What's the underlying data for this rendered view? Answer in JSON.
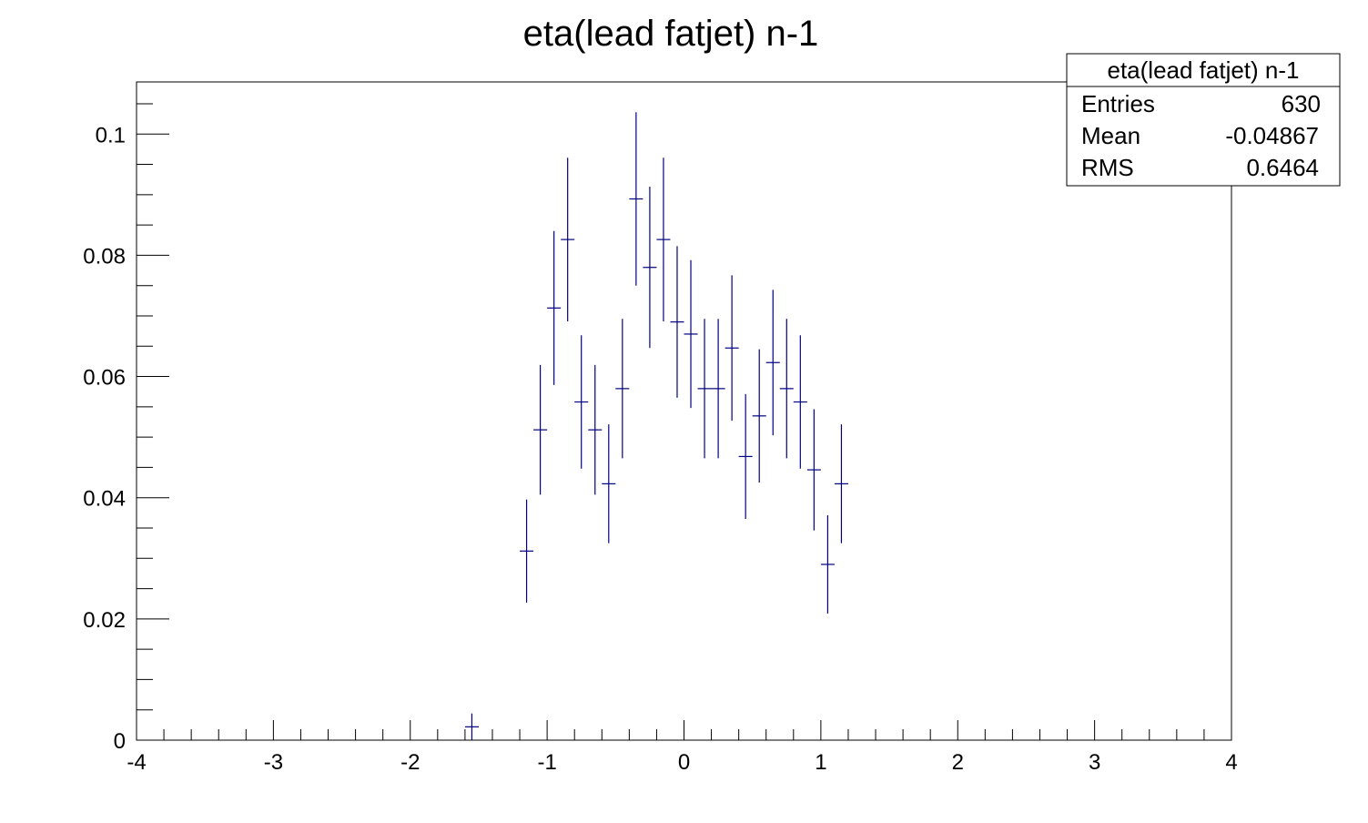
{
  "chart_data": {
    "type": "scatter",
    "title": "eta(lead fatjet) n-1",
    "xlabel": "",
    "ylabel": "",
    "xlim": [
      -4,
      4
    ],
    "ylim": [
      0,
      0.1086
    ],
    "x_ticks": [
      "-4",
      "-3",
      "-2",
      "-1",
      "0",
      "1",
      "2",
      "3",
      "4"
    ],
    "y_ticks": [
      "0",
      "0.02",
      "0.04",
      "0.06",
      "0.08",
      "0.1"
    ],
    "grid": false,
    "marker_color": "#000080",
    "bin_width": 0.1,
    "series": [
      {
        "x": [
          -1.55,
          -1.15,
          -1.05,
          -0.95,
          -0.85,
          -0.75,
          -0.65,
          -0.55,
          -0.45,
          -0.35,
          -0.25,
          -0.15,
          -0.05,
          0.05,
          0.15,
          0.25,
          0.35,
          0.45,
          0.55,
          0.65,
          0.75,
          0.85,
          0.95,
          1.05,
          1.15
        ],
        "y": [
          0.0022,
          0.0312,
          0.0512,
          0.0713,
          0.0826,
          0.0558,
          0.0512,
          0.0423,
          0.058,
          0.0893,
          0.078,
          0.0826,
          0.069,
          0.067,
          0.058,
          0.058,
          0.0647,
          0.0468,
          0.0535,
          0.0623,
          0.058,
          0.0558,
          0.0446,
          0.029,
          0.0423
        ],
        "y_err": [
          0.0022,
          0.0085,
          0.0107,
          0.0127,
          0.0135,
          0.011,
          0.0107,
          0.0098,
          0.0115,
          0.0143,
          0.0133,
          0.0135,
          0.0125,
          0.0122,
          0.0115,
          0.0115,
          0.012,
          0.0103,
          0.011,
          0.012,
          0.0115,
          0.011,
          0.01,
          0.0081,
          0.0098
        ]
      }
    ]
  },
  "stats_box": {
    "title": "eta(lead fatjet) n-1",
    "rows": [
      {
        "label": "Entries",
        "value": "630"
      },
      {
        "label": "Mean",
        "value": "-0.04867"
      },
      {
        "label": "RMS",
        "value": "0.6464"
      }
    ]
  }
}
